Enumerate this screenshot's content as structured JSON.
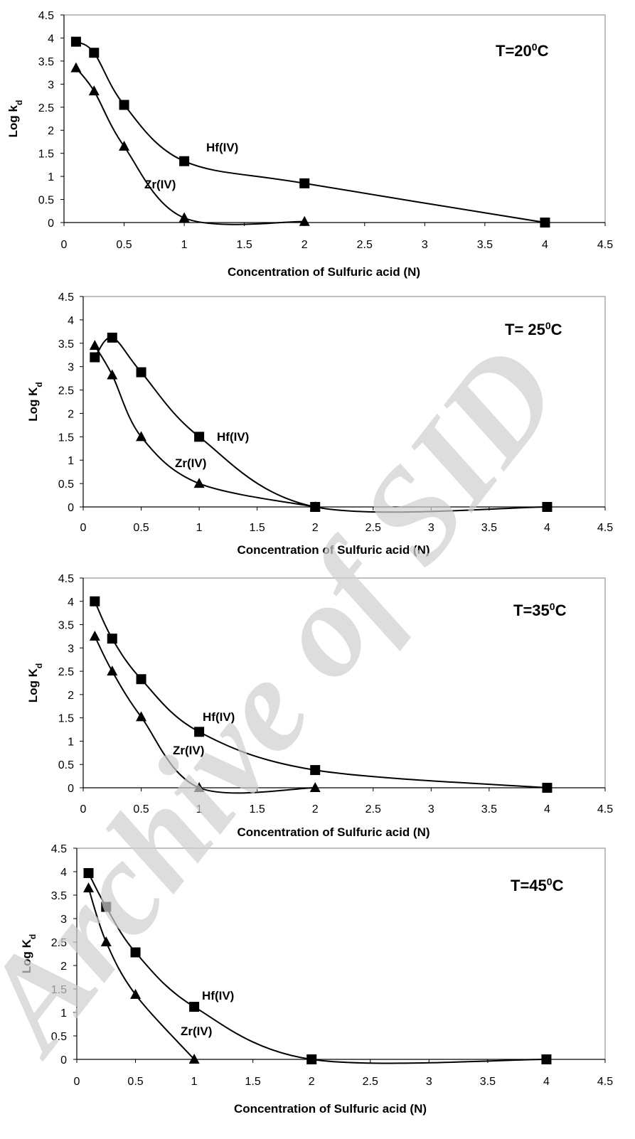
{
  "watermark": "Archive of SID",
  "chart_data": [
    {
      "type": "line",
      "temperature": "T=20",
      "temperature_sup": "0",
      "temperature_unit": "C",
      "xlabel": "Concentration of Sulfuric acid (N)",
      "ylabel_main": "Log k",
      "ylabel_sub": "d",
      "xlim": [
        0,
        4.5
      ],
      "ylim": [
        0,
        4.5
      ],
      "xticks": [
        "0",
        "0.5",
        "1",
        "1.5",
        "2",
        "2.5",
        "3",
        "3.5",
        "4",
        "4.5"
      ],
      "yticks": [
        "0",
        "0.5",
        "1",
        "1.5",
        "2",
        "2.5",
        "3",
        "3.5",
        "4",
        "4.5"
      ],
      "grid": false,
      "series": [
        {
          "name": "Hf(IV)",
          "marker": "square",
          "x": [
            0.1,
            0.25,
            0.5,
            1,
            2,
            4
          ],
          "y": [
            3.92,
            3.68,
            2.55,
            1.33,
            0.85,
            0.0
          ]
        },
        {
          "name": "Zr(IV)",
          "marker": "triangle",
          "x": [
            0.1,
            0.25,
            0.5,
            1,
            2
          ],
          "y": [
            3.35,
            2.85,
            1.65,
            0.1,
            0.02
          ]
        }
      ]
    },
    {
      "type": "line",
      "temperature": "T= 25",
      "temperature_sup": "0",
      "temperature_unit": "C",
      "xlabel": "Concentration of Sulfuric acid (N)",
      "ylabel_main": "Log K",
      "ylabel_sub": "d",
      "xlim": [
        0,
        4.5
      ],
      "ylim": [
        0,
        4.5
      ],
      "xticks": [
        "0",
        "0.5",
        "1",
        "1.5",
        "2",
        "2.5",
        "3",
        "3.5",
        "4",
        "4.5"
      ],
      "yticks": [
        "0",
        "0.5",
        "1",
        "1.5",
        "2",
        "2.5",
        "3",
        "3.5",
        "4",
        "4.5"
      ],
      "grid": false,
      "series": [
        {
          "name": "Hf(IV)",
          "marker": "square",
          "x": [
            0.1,
            0.25,
            0.5,
            1,
            2,
            4
          ],
          "y": [
            3.2,
            3.62,
            2.88,
            1.5,
            0.0,
            0.0
          ]
        },
        {
          "name": "Zr(IV)",
          "marker": "triangle",
          "x": [
            0.1,
            0.25,
            0.5,
            1,
            2
          ],
          "y": [
            3.45,
            2.82,
            1.5,
            0.5,
            0.0
          ]
        }
      ]
    },
    {
      "type": "line",
      "temperature": "T=35",
      "temperature_sup": "0",
      "temperature_unit": "C",
      "xlabel": "Concentration of Sulfuric acid (N)",
      "ylabel_main": "Log K",
      "ylabel_sub": "d",
      "xlim": [
        0,
        4.5
      ],
      "ylim": [
        0,
        4.5
      ],
      "xticks": [
        "0",
        "0.5",
        "1",
        "1.5",
        "2",
        "2.5",
        "3",
        "3.5",
        "4",
        "4.5"
      ],
      "yticks": [
        "0",
        "0.5",
        "1",
        "1.5",
        "2",
        "2.5",
        "3",
        "3.5",
        "4",
        "4.5"
      ],
      "grid": false,
      "series": [
        {
          "name": "Hf(IV)",
          "marker": "square",
          "x": [
            0.1,
            0.25,
            0.5,
            1,
            2,
            4
          ],
          "y": [
            4.0,
            3.2,
            2.33,
            1.2,
            0.38,
            0.0
          ]
        },
        {
          "name": "Zr(IV)",
          "marker": "triangle",
          "x": [
            0.1,
            0.25,
            0.5,
            1,
            2
          ],
          "y": [
            3.25,
            2.5,
            1.52,
            0.0,
            0.0
          ]
        }
      ]
    },
    {
      "type": "line",
      "temperature": "T=45",
      "temperature_sup": "0",
      "temperature_unit": "C",
      "xlabel": "Concentration of Sulfuric acid (N)",
      "ylabel_main": "Log K",
      "ylabel_sub": "d",
      "xlim": [
        0,
        4.5
      ],
      "ylim": [
        0,
        4.5
      ],
      "xticks": [
        "0",
        "0.5",
        "1",
        "1.5",
        "2",
        "2.5",
        "3",
        "3.5",
        "4",
        "4.5"
      ],
      "yticks": [
        "0",
        "0.5",
        "1",
        "1.5",
        "2",
        "2.5",
        "3",
        "3.5",
        "4",
        "4.5"
      ],
      "grid": false,
      "series": [
        {
          "name": "Hf(IV)",
          "marker": "square",
          "x": [
            0.1,
            0.25,
            0.5,
            1,
            2,
            4
          ],
          "y": [
            3.97,
            3.25,
            2.28,
            1.12,
            0.0,
            0.0
          ]
        },
        {
          "name": "Zr(IV)",
          "marker": "triangle",
          "x": [
            0.1,
            0.25,
            0.5,
            1
          ],
          "y": [
            3.65,
            2.5,
            1.38,
            0.0
          ]
        }
      ]
    }
  ]
}
